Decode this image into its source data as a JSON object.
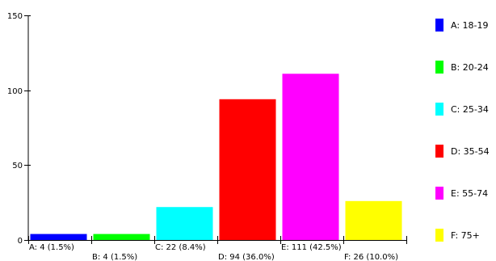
{
  "chart_data": {
    "type": "bar",
    "title": "",
    "xlabel": "",
    "ylabel": "",
    "ylim": [
      0,
      150
    ],
    "yticks": [
      "0",
      "50",
      "100",
      "150"
    ],
    "grid": false,
    "legend_position": "right",
    "categories": [
      "A",
      "B",
      "C",
      "D",
      "E",
      "F"
    ],
    "values": [
      4,
      4,
      22,
      94,
      111,
      26
    ],
    "data_labels": [
      "A:  4  (1.5%)",
      "B:  4  (1.5%)",
      "C:  22  (8.4%)",
      "D:  94  (36.0%)",
      "E:  111  (42.5%)",
      "F:  26  (10.0%)"
    ],
    "legend": [
      {
        "label": "A:  18-19",
        "color": "#0000ff"
      },
      {
        "label": "B:  20-24",
        "color": "#00ff00"
      },
      {
        "label": "C:  25-34",
        "color": "#00ffff"
      },
      {
        "label": "D:  35-54",
        "color": "#ff0000"
      },
      {
        "label": "E:  55-74",
        "color": "#ff00ff"
      },
      {
        "label": "F:  75+",
        "color": "#ffff00"
      }
    ]
  }
}
